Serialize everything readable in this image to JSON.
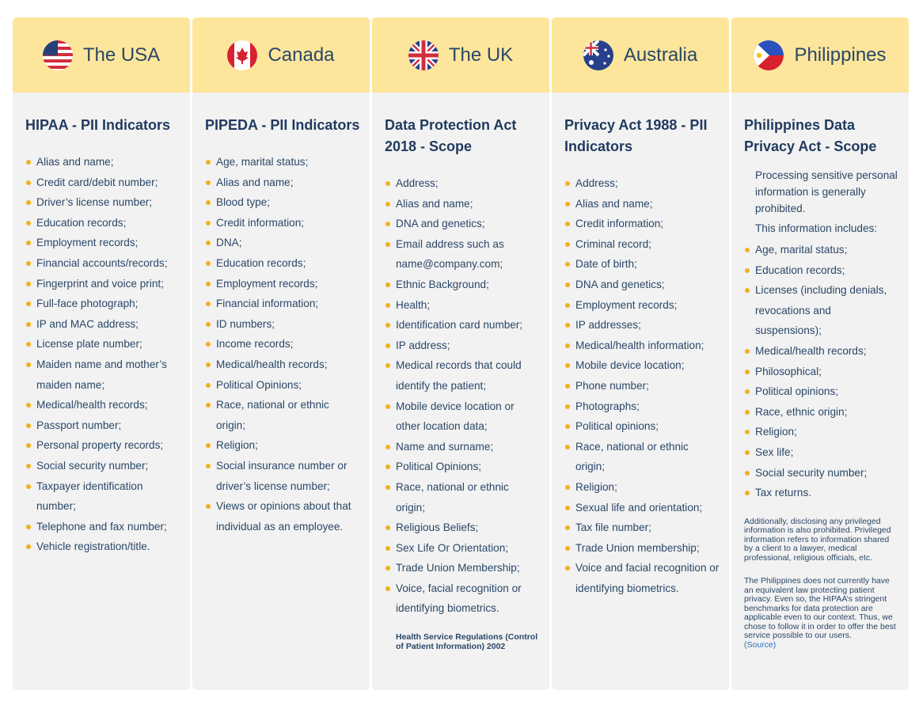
{
  "columns": [
    {
      "country": "The USA",
      "heading": "HIPAA - PII Indicators",
      "items": [
        "Alias and name;",
        "Credit card/debit number;",
        "Driver’s license number;",
        "Education records;",
        "Employment records;",
        "Financial accounts/records;",
        "Fingerprint and voice print;",
        "Full-face photograph;",
        "IP and MAC address;",
        "License plate number;",
        "Maiden name and mother’s maiden name;",
        "Medical/health records;",
        "Passport number;",
        "Personal property records;",
        "Social security number;",
        "Taxpayer identification number;",
        "Telephone and fax number;",
        "Vehicle registration/title."
      ]
    },
    {
      "country": "Canada",
      "heading": "PIPEDA - PII Indicators",
      "items": [
        "Age, marital status;",
        "Alias and name;",
        "Blood type;",
        "Credit information;",
        "DNA;",
        "Education records;",
        "Employment records;",
        "Financial information;",
        "ID numbers;",
        "Income records;",
        "Medical/health records;",
        "Political Opinions;",
        "Race, national or ethnic origin;",
        "Religion;",
        "Social insurance number or driver’s license number;",
        "Views or opinions about that individual as an employee."
      ]
    },
    {
      "country": "The UK",
      "heading": "Data Protection Act 2018 - Scope",
      "items": [
        "Address;",
        "Alias and name;",
        "DNA and genetics;",
        "Email address such as name@company.com;",
        "Ethnic Background;",
        "Health;",
        "Identification card number;",
        "IP address;",
        "Medical records that could identify the patient;",
        "Mobile device location or other location data;",
        "Name and surname;",
        "Political Opinions;",
        "Race, national or ethnic origin;",
        "Religious Beliefs;",
        "Sex Life Or Orientation;",
        "Trade Union Membership;",
        "Voice, facial recognition or identifying biometrics."
      ],
      "bold_note": "Health Service Regulations (Control of Patient Information) 2002"
    },
    {
      "country": "Australia",
      "heading": "Privacy Act 1988 - PII Indicators",
      "items": [
        "Address;",
        "Alias and name;",
        "Credit information;",
        "Criminal record;",
        "Date of birth;",
        "DNA and genetics;",
        "Employment records;",
        "IP addresses;",
        "Medical/health information;",
        "Mobile device location;",
        "Phone number;",
        "Photographs;",
        "Political opinions;",
        "Race, national or ethnic origin;",
        "Religion;",
        "Sexual life and orientation;",
        "Tax file number;",
        "Trade Union membership;",
        "Voice and facial recognition or identifying biometrics."
      ]
    },
    {
      "country": "Philippines",
      "heading": "Philippines Data Privacy Act - Scope",
      "intro": [
        "Processing sensitive personal information is generally prohibited.",
        "This information includes:"
      ],
      "items": [
        "Age, marital status;",
        "Education records;",
        "Licenses (including denials, revocations and suspensions);",
        "Medical/health records;",
        "Philosophical;",
        "Political opinions;",
        "Race, ethnic origin;",
        "Religion;",
        "Sex life;",
        "Social security number;",
        "Tax returns."
      ],
      "notes": [
        "Additionally, disclosing any privileged information is also prohibited. Privileged information refers to information shared by a client to a lawyer, medical professional, religious officials, etc.",
        "The Philippines does not currently have an equivalent law protecting patient privacy. Even so, the HIPAA’s stringent benchmarks for data protection are applicable even to our context. Thus, we chose to follow it in order to offer the best service possible to our users."
      ],
      "source": "(Source)"
    }
  ]
}
